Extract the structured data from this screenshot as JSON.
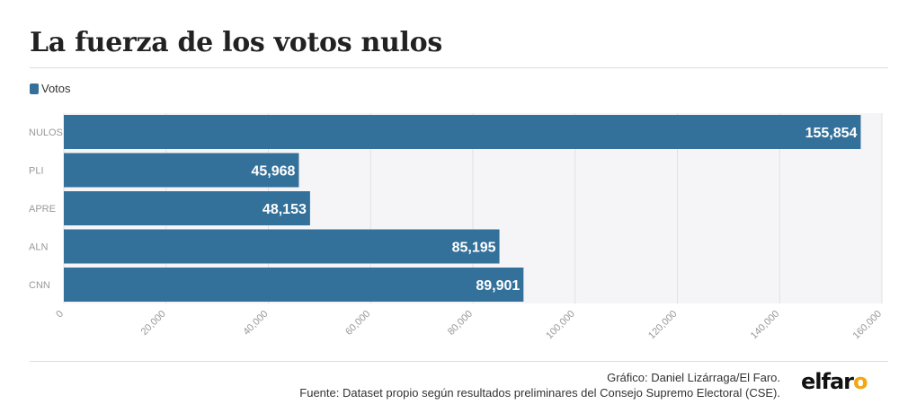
{
  "title": "La fuerza de los votos nulos",
  "credit": "Gráfico: Daniel Lizárraga/El Faro.",
  "source": "Fuente: Dataset propio según resultados preliminares del Consejo Supremo Electoral (CSE).",
  "logo": {
    "main": "elfar",
    "accent": "o"
  },
  "colors": {
    "bar": "#33709a",
    "plot_bg": "#f5f4f6",
    "grid": "#e2e0e4",
    "axis_text": "#999999"
  },
  "chart_data": {
    "type": "bar",
    "orientation": "horizontal",
    "categories": [
      "NULOS",
      "PLI",
      "APRE",
      "ALN",
      "CNN"
    ],
    "series": [
      {
        "name": "Votos",
        "values": [
          155854,
          45968,
          48153,
          85195,
          89901
        ]
      }
    ],
    "value_labels": [
      "155,854",
      "45,968",
      "48,153",
      "85,195",
      "89,901"
    ],
    "xlim": [
      0,
      160000
    ],
    "xticks": [
      0,
      20000,
      40000,
      60000,
      80000,
      100000,
      120000,
      140000,
      160000
    ],
    "xtick_labels": [
      "0",
      "20,000",
      "40,000",
      "60,000",
      "80,000",
      "100,000",
      "120,000",
      "140,000",
      "160,000"
    ],
    "grid": true,
    "legend_position": "top-left"
  }
}
